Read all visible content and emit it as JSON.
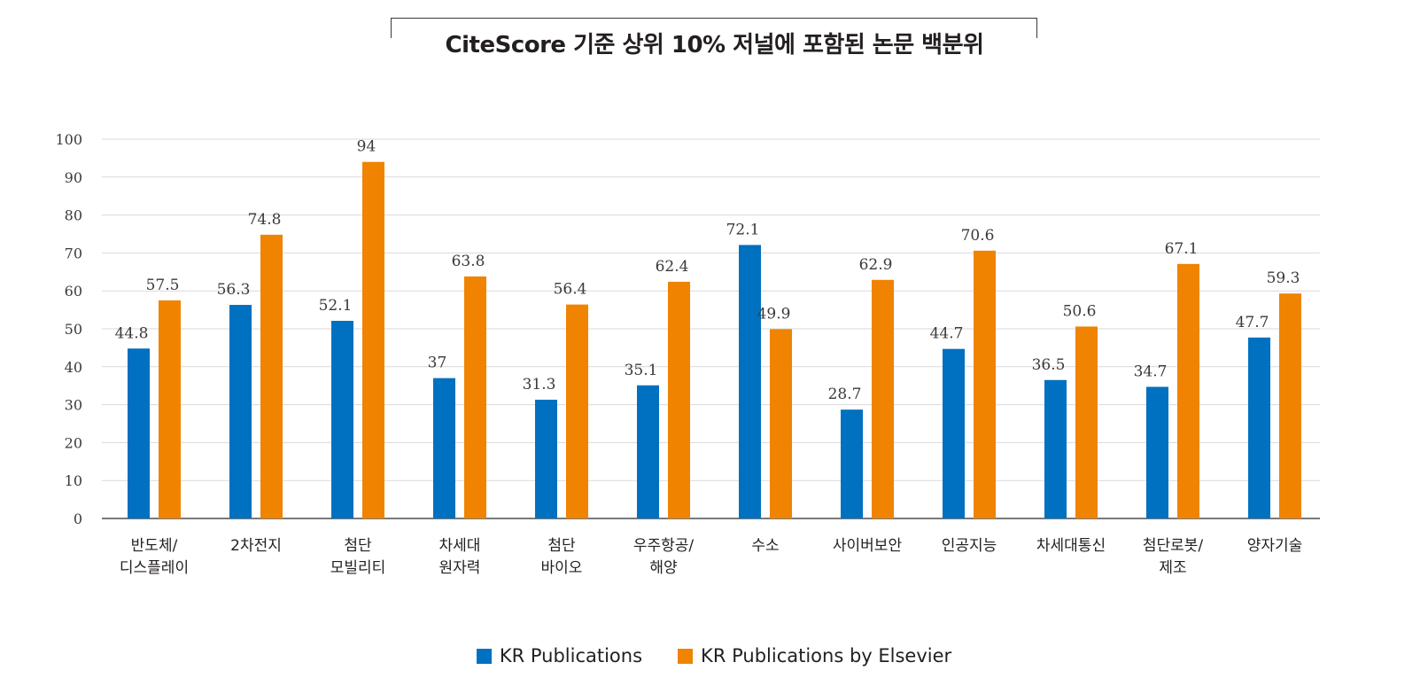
{
  "chart_data": {
    "type": "bar",
    "title": "CiteScore 기준 상위 10% 저널에 포함된 논문 백분위",
    "xlabel": "",
    "ylabel": "",
    "ylim": [
      0,
      100
    ],
    "yticks": [
      0,
      10,
      20,
      30,
      40,
      50,
      60,
      70,
      80,
      90,
      100
    ],
    "grid": true,
    "legend_position": "bottom-center",
    "categories": [
      [
        "반도체/",
        "디스플레이"
      ],
      [
        "2차전지"
      ],
      [
        "첨단",
        "모빌리티"
      ],
      [
        "차세대",
        "원자력"
      ],
      [
        "첨단",
        "바이오"
      ],
      [
        "우주항공/",
        "해양"
      ],
      [
        "수소"
      ],
      [
        "사이버보안"
      ],
      [
        "인공지능"
      ],
      [
        "차세대통신"
      ],
      [
        "첨단로봇/",
        "제조"
      ],
      [
        "양자기술"
      ]
    ],
    "series": [
      {
        "name": "KR Publications",
        "color": "#0070c0",
        "values": [
          44.8,
          56.3,
          52.1,
          37,
          31.3,
          35.1,
          72.1,
          28.7,
          44.7,
          36.5,
          34.7,
          47.7
        ]
      },
      {
        "name": "KR Publications by Elsevier",
        "color": "#f08300",
        "values": [
          57.5,
          74.8,
          94,
          63.8,
          56.4,
          62.4,
          49.9,
          62.9,
          70.6,
          50.6,
          67.1,
          59.3
        ]
      }
    ]
  }
}
